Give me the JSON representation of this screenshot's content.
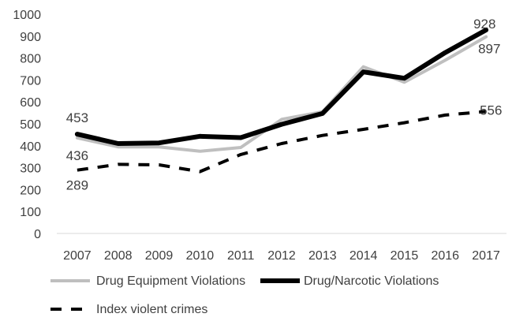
{
  "chart_data": {
    "type": "line",
    "title": "",
    "xlabel": "",
    "ylabel": "",
    "x": [
      "2007",
      "2008",
      "2009",
      "2010",
      "2011",
      "2012",
      "2013",
      "2014",
      "2015",
      "2016",
      "2017"
    ],
    "ylim": [
      0,
      1000
    ],
    "yticks": [
      "0",
      "100",
      "200",
      "300",
      "400",
      "500",
      "600",
      "700",
      "800",
      "900",
      "1000"
    ],
    "grid": false,
    "legend_position": "bottom",
    "series": [
      {
        "name": "Drug Equipment Violations",
        "color": "#bfbfbf",
        "dash": "solid",
        "values": [
          436,
          395,
          395,
          375,
          392,
          520,
          555,
          760,
          690,
          790,
          897
        ]
      },
      {
        "name": "Drug/Narcotic Violations",
        "color": "#000000",
        "dash": "solid",
        "values": [
          453,
          410,
          413,
          443,
          437,
          498,
          547,
          737,
          708,
          825,
          928
        ]
      },
      {
        "name": "Index violent crimes",
        "color": "#000000",
        "dash": "dashed",
        "values": [
          289,
          315,
          313,
          282,
          360,
          410,
          447,
          475,
          505,
          540,
          556
        ]
      }
    ],
    "data_labels": [
      {
        "series": 0,
        "index": 0,
        "text": "436"
      },
      {
        "series": 0,
        "index": 10,
        "text": "897"
      },
      {
        "series": 1,
        "index": 0,
        "text": "453"
      },
      {
        "series": 1,
        "index": 10,
        "text": "928"
      },
      {
        "series": 2,
        "index": 0,
        "text": "289"
      },
      {
        "series": 2,
        "index": 10,
        "text": "556"
      }
    ]
  }
}
